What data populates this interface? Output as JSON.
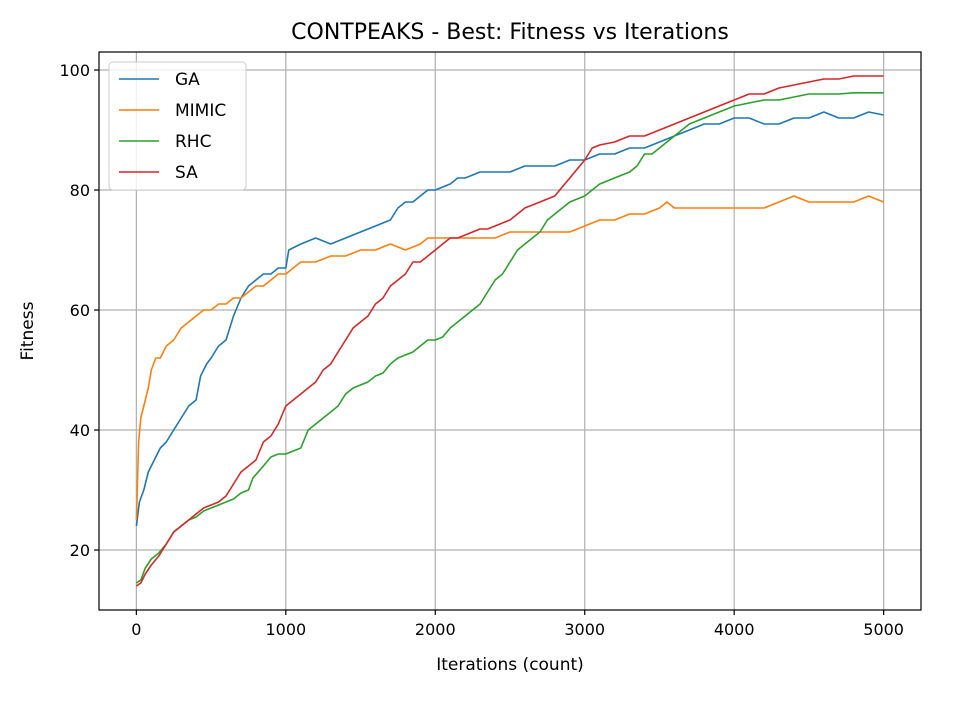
{
  "chart_data": {
    "type": "line",
    "title": "CONTPEAKS - Best: Fitness vs Iterations",
    "xlabel": "Iterations (count)",
    "ylabel": "Fitness",
    "xlim": [
      -250,
      5250
    ],
    "ylim": [
      10,
      103
    ],
    "xticks": [
      0,
      1000,
      2000,
      3000,
      4000,
      5000
    ],
    "yticks": [
      20,
      40,
      60,
      80,
      100
    ],
    "grid": true,
    "legend_position": "upper-left",
    "series": [
      {
        "name": "GA",
        "color": "#1f77b4",
        "points": [
          [
            0,
            24
          ],
          [
            20,
            28
          ],
          [
            50,
            30
          ],
          [
            80,
            33
          ],
          [
            120,
            35
          ],
          [
            160,
            37
          ],
          [
            200,
            38
          ],
          [
            250,
            40
          ],
          [
            300,
            42
          ],
          [
            350,
            44
          ],
          [
            400,
            45
          ],
          [
            430,
            49
          ],
          [
            470,
            51
          ],
          [
            500,
            52
          ],
          [
            550,
            54
          ],
          [
            600,
            55
          ],
          [
            650,
            59
          ],
          [
            700,
            62
          ],
          [
            750,
            64
          ],
          [
            800,
            65
          ],
          [
            850,
            66
          ],
          [
            900,
            66
          ],
          [
            950,
            67
          ],
          [
            1000,
            67
          ],
          [
            1020,
            70
          ],
          [
            1100,
            71
          ],
          [
            1200,
            72
          ],
          [
            1300,
            71
          ],
          [
            1400,
            72
          ],
          [
            1500,
            73
          ],
          [
            1600,
            74
          ],
          [
            1700,
            75
          ],
          [
            1750,
            77
          ],
          [
            1800,
            78
          ],
          [
            1850,
            78
          ],
          [
            1900,
            79
          ],
          [
            1950,
            80
          ],
          [
            2000,
            80
          ],
          [
            2100,
            81
          ],
          [
            2150,
            82
          ],
          [
            2200,
            82
          ],
          [
            2300,
            83
          ],
          [
            2400,
            83
          ],
          [
            2500,
            83
          ],
          [
            2600,
            84
          ],
          [
            2700,
            84
          ],
          [
            2800,
            84
          ],
          [
            2900,
            85
          ],
          [
            3000,
            85
          ],
          [
            3100,
            86
          ],
          [
            3200,
            86
          ],
          [
            3300,
            87
          ],
          [
            3400,
            87
          ],
          [
            3500,
            88
          ],
          [
            3600,
            89
          ],
          [
            3700,
            90
          ],
          [
            3800,
            91
          ],
          [
            3900,
            91
          ],
          [
            4000,
            92
          ],
          [
            4100,
            92
          ],
          [
            4200,
            91
          ],
          [
            4300,
            91
          ],
          [
            4400,
            92
          ],
          [
            4500,
            92
          ],
          [
            4600,
            93
          ],
          [
            4700,
            92
          ],
          [
            4800,
            92
          ],
          [
            4900,
            93
          ],
          [
            5000,
            92.5
          ]
        ]
      },
      {
        "name": "MIMIC",
        "color": "#ff7f0e",
        "points": [
          [
            0,
            25
          ],
          [
            15,
            38
          ],
          [
            30,
            42
          ],
          [
            50,
            44
          ],
          [
            80,
            47
          ],
          [
            100,
            50
          ],
          [
            130,
            52
          ],
          [
            160,
            52
          ],
          [
            200,
            54
          ],
          [
            250,
            55
          ],
          [
            300,
            57
          ],
          [
            350,
            58
          ],
          [
            400,
            59
          ],
          [
            450,
            60
          ],
          [
            500,
            60
          ],
          [
            550,
            61
          ],
          [
            600,
            61
          ],
          [
            650,
            62
          ],
          [
            700,
            62
          ],
          [
            750,
            63
          ],
          [
            800,
            64
          ],
          [
            850,
            64
          ],
          [
            900,
            65
          ],
          [
            950,
            66
          ],
          [
            1000,
            66
          ],
          [
            1050,
            67
          ],
          [
            1100,
            68
          ],
          [
            1200,
            68
          ],
          [
            1300,
            69
          ],
          [
            1400,
            69
          ],
          [
            1500,
            70
          ],
          [
            1600,
            70
          ],
          [
            1700,
            71
          ],
          [
            1800,
            70
          ],
          [
            1900,
            71
          ],
          [
            1950,
            72
          ],
          [
            2000,
            72
          ],
          [
            2100,
            72
          ],
          [
            2200,
            72
          ],
          [
            2300,
            72
          ],
          [
            2400,
            72
          ],
          [
            2500,
            73
          ],
          [
            2600,
            73
          ],
          [
            2700,
            73
          ],
          [
            2800,
            73
          ],
          [
            2900,
            73
          ],
          [
            3000,
            74
          ],
          [
            3100,
            75
          ],
          [
            3200,
            75
          ],
          [
            3300,
            76
          ],
          [
            3400,
            76
          ],
          [
            3500,
            77
          ],
          [
            3550,
            78
          ],
          [
            3600,
            77
          ],
          [
            3700,
            77
          ],
          [
            3800,
            77
          ],
          [
            3900,
            77
          ],
          [
            4000,
            77
          ],
          [
            4100,
            77
          ],
          [
            4200,
            77
          ],
          [
            4300,
            78
          ],
          [
            4400,
            79
          ],
          [
            4500,
            78
          ],
          [
            4600,
            78
          ],
          [
            4700,
            78
          ],
          [
            4800,
            78
          ],
          [
            4900,
            79
          ],
          [
            5000,
            78
          ]
        ]
      },
      {
        "name": "RHC",
        "color": "#2ca02c",
        "points": [
          [
            0,
            14.5
          ],
          [
            30,
            15
          ],
          [
            60,
            17
          ],
          [
            100,
            18.5
          ],
          [
            150,
            19.5
          ],
          [
            200,
            21
          ],
          [
            250,
            23
          ],
          [
            300,
            24
          ],
          [
            350,
            25
          ],
          [
            400,
            25.5
          ],
          [
            450,
            26.5
          ],
          [
            500,
            27
          ],
          [
            550,
            27.5
          ],
          [
            600,
            28
          ],
          [
            650,
            28.5
          ],
          [
            700,
            29.5
          ],
          [
            750,
            30
          ],
          [
            780,
            32
          ],
          [
            850,
            34
          ],
          [
            900,
            35.5
          ],
          [
            950,
            36
          ],
          [
            1000,
            36
          ],
          [
            1050,
            36.5
          ],
          [
            1100,
            37
          ],
          [
            1150,
            40
          ],
          [
            1200,
            41
          ],
          [
            1250,
            42
          ],
          [
            1300,
            43
          ],
          [
            1350,
            44
          ],
          [
            1400,
            46
          ],
          [
            1450,
            47
          ],
          [
            1500,
            47.5
          ],
          [
            1550,
            48
          ],
          [
            1600,
            49
          ],
          [
            1650,
            49.5
          ],
          [
            1700,
            51
          ],
          [
            1750,
            52
          ],
          [
            1800,
            52.5
          ],
          [
            1850,
            53
          ],
          [
            1900,
            54
          ],
          [
            1950,
            55
          ],
          [
            2000,
            55
          ],
          [
            2050,
            55.5
          ],
          [
            2100,
            57
          ],
          [
            2150,
            58
          ],
          [
            2200,
            59
          ],
          [
            2250,
            60
          ],
          [
            2300,
            61
          ],
          [
            2350,
            63
          ],
          [
            2400,
            65
          ],
          [
            2450,
            66
          ],
          [
            2500,
            68
          ],
          [
            2550,
            70
          ],
          [
            2600,
            71
          ],
          [
            2650,
            72
          ],
          [
            2700,
            73
          ],
          [
            2750,
            75
          ],
          [
            2800,
            76
          ],
          [
            2900,
            78
          ],
          [
            3000,
            79
          ],
          [
            3100,
            81
          ],
          [
            3200,
            82
          ],
          [
            3300,
            83
          ],
          [
            3350,
            84
          ],
          [
            3400,
            86
          ],
          [
            3450,
            86
          ],
          [
            3500,
            87
          ],
          [
            3550,
            88
          ],
          [
            3600,
            89
          ],
          [
            3700,
            91
          ],
          [
            3800,
            92
          ],
          [
            3900,
            93
          ],
          [
            4000,
            94
          ],
          [
            4100,
            94.5
          ],
          [
            4200,
            95
          ],
          [
            4300,
            95
          ],
          [
            4400,
            95.5
          ],
          [
            4500,
            96
          ],
          [
            4600,
            96
          ],
          [
            4700,
            96
          ],
          [
            4800,
            96.2
          ],
          [
            4900,
            96.2
          ],
          [
            5000,
            96.2
          ]
        ]
      },
      {
        "name": "SA",
        "color": "#d62728",
        "points": [
          [
            0,
            14
          ],
          [
            30,
            14.5
          ],
          [
            60,
            16
          ],
          [
            100,
            17.5
          ],
          [
            150,
            19
          ],
          [
            200,
            21
          ],
          [
            250,
            23
          ],
          [
            300,
            24
          ],
          [
            350,
            25
          ],
          [
            400,
            26
          ],
          [
            450,
            27
          ],
          [
            500,
            27.5
          ],
          [
            550,
            28
          ],
          [
            600,
            29
          ],
          [
            650,
            31
          ],
          [
            700,
            33
          ],
          [
            750,
            34
          ],
          [
            800,
            35
          ],
          [
            850,
            38
          ],
          [
            900,
            39
          ],
          [
            950,
            41
          ],
          [
            1000,
            44
          ],
          [
            1050,
            45
          ],
          [
            1100,
            46
          ],
          [
            1150,
            47
          ],
          [
            1200,
            48
          ],
          [
            1250,
            50
          ],
          [
            1300,
            51
          ],
          [
            1350,
            53
          ],
          [
            1400,
            55
          ],
          [
            1450,
            57
          ],
          [
            1500,
            58
          ],
          [
            1550,
            59
          ],
          [
            1600,
            61
          ],
          [
            1650,
            62
          ],
          [
            1700,
            64
          ],
          [
            1750,
            65
          ],
          [
            1800,
            66
          ],
          [
            1850,
            68
          ],
          [
            1900,
            68
          ],
          [
            1950,
            69
          ],
          [
            2000,
            70
          ],
          [
            2050,
            71
          ],
          [
            2100,
            72
          ],
          [
            2150,
            72
          ],
          [
            2200,
            72.5
          ],
          [
            2250,
            73
          ],
          [
            2300,
            73.5
          ],
          [
            2350,
            73.5
          ],
          [
            2400,
            74
          ],
          [
            2500,
            75
          ],
          [
            2600,
            77
          ],
          [
            2700,
            78
          ],
          [
            2800,
            79
          ],
          [
            2900,
            82
          ],
          [
            3000,
            85
          ],
          [
            3050,
            87
          ],
          [
            3100,
            87.5
          ],
          [
            3200,
            88
          ],
          [
            3300,
            89
          ],
          [
            3400,
            89
          ],
          [
            3500,
            90
          ],
          [
            3600,
            91
          ],
          [
            3700,
            92
          ],
          [
            3800,
            93
          ],
          [
            3900,
            94
          ],
          [
            4000,
            95
          ],
          [
            4100,
            96
          ],
          [
            4200,
            96
          ],
          [
            4300,
            97
          ],
          [
            4400,
            97.5
          ],
          [
            4500,
            98
          ],
          [
            4600,
            98.5
          ],
          [
            4700,
            98.5
          ],
          [
            4800,
            99
          ],
          [
            4900,
            99
          ],
          [
            5000,
            99
          ]
        ]
      }
    ]
  }
}
